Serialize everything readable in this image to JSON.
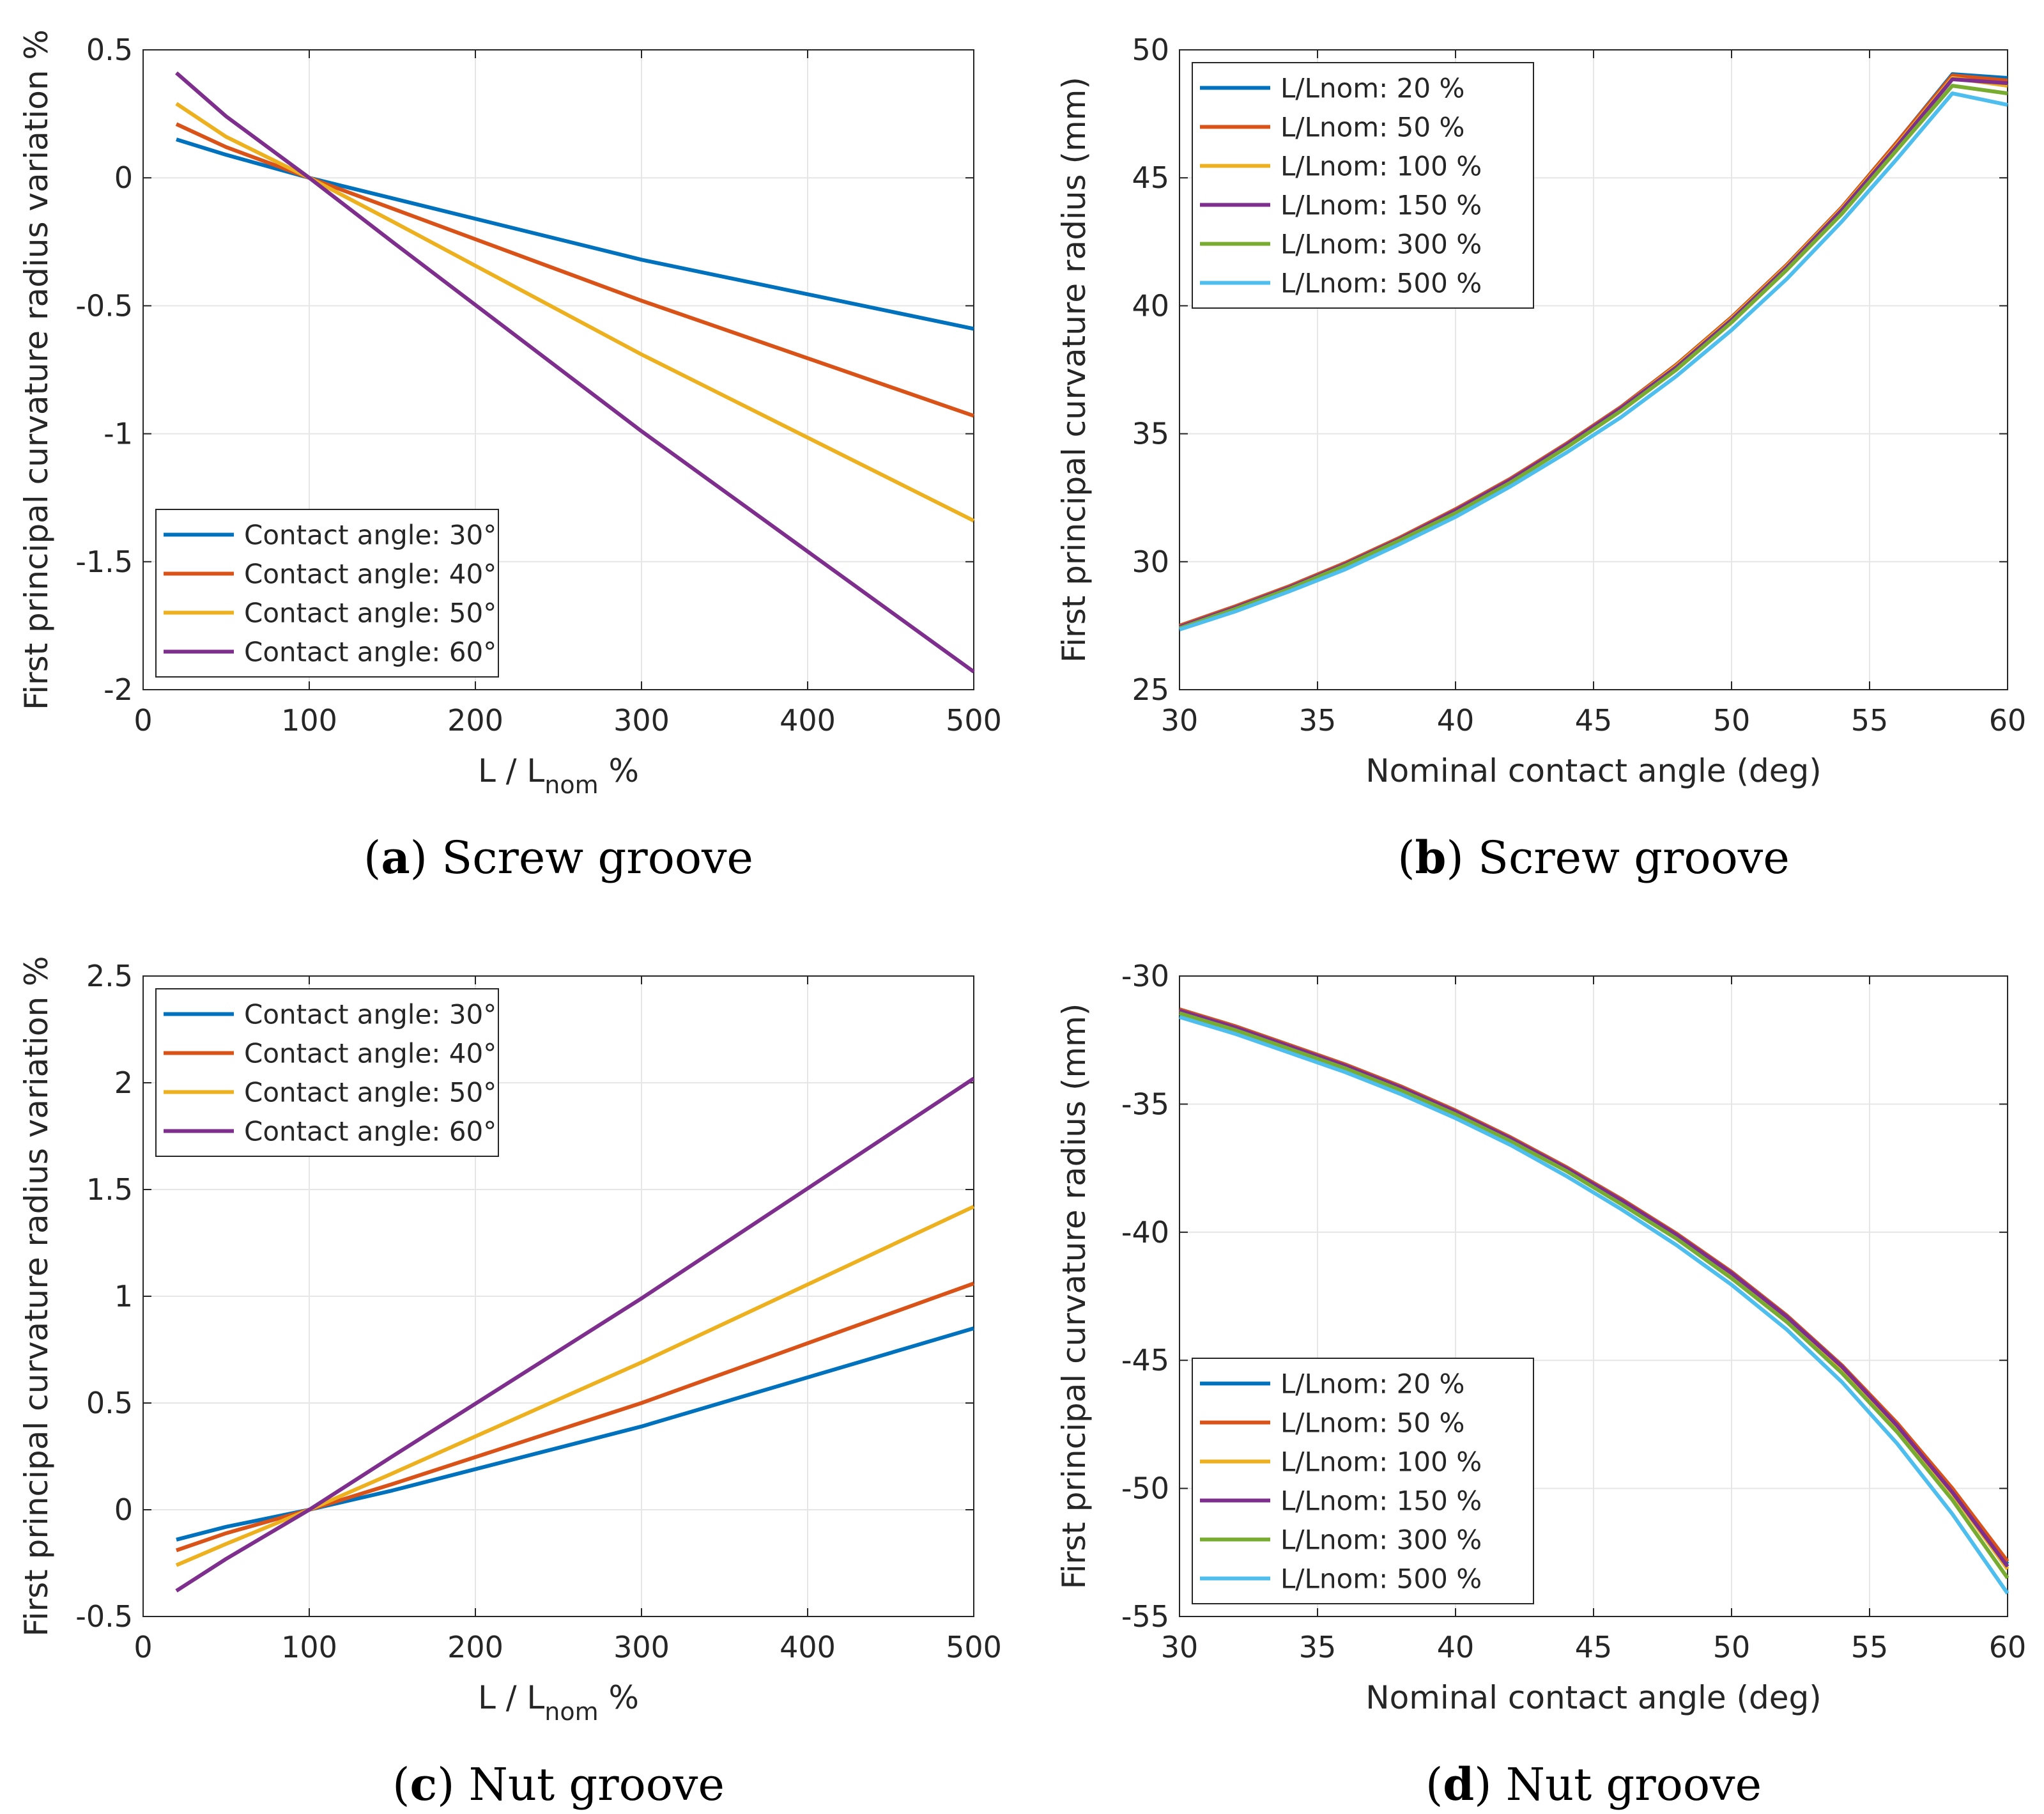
{
  "chart_data": [
    {
      "id": "a",
      "type": "line",
      "caption": {
        "letter": "a",
        "text": "Screw groove"
      },
      "xlabel": "L / L",
      "xlabel_sub": "nom",
      "xlabel_suffix": " %",
      "ylabel": "First principal curvature radius variation %",
      "xlim": [
        0,
        500
      ],
      "ylim": [
        -2,
        0.5
      ],
      "xticks": [
        0,
        100,
        200,
        300,
        400,
        500
      ],
      "xtick_labels": [
        "0",
        "100",
        "200",
        "300",
        "400",
        "500"
      ],
      "yticks": [
        -2,
        -1.5,
        -1,
        -0.5,
        0,
        0.5
      ],
      "ytick_labels": [
        "-2",
        "-1.5",
        "-1",
        "-0.5",
        "0",
        "0.5"
      ],
      "grid": true,
      "legend_position": "bottom-left",
      "x": [
        20,
        50,
        100,
        150,
        300,
        500
      ],
      "series": [
        {
          "name": "Contact angle: 30°",
          "color": "#0072BD",
          "values": [
            0.15,
            0.09,
            0.0,
            -0.08,
            -0.32,
            -0.59
          ]
        },
        {
          "name": "Contact angle: 40°",
          "color": "#D95319",
          "values": [
            0.21,
            0.12,
            0.0,
            -0.12,
            -0.48,
            -0.93
          ]
        },
        {
          "name": "Contact angle: 50°",
          "color": "#EDB120",
          "values": [
            0.29,
            0.16,
            0.0,
            -0.17,
            -0.69,
            -1.34
          ]
        },
        {
          "name": "Contact angle: 60°",
          "color": "#7E2F8E",
          "values": [
            0.41,
            0.24,
            0.0,
            -0.25,
            -0.99,
            -1.93
          ]
        }
      ]
    },
    {
      "id": "b",
      "type": "line",
      "caption": {
        "letter": "b",
        "text": "Screw groove"
      },
      "xlabel": "Nominal contact angle (deg)",
      "ylabel": "First principal curvature radius (mm)",
      "xlim": [
        30,
        60
      ],
      "ylim": [
        25,
        50
      ],
      "xticks": [
        30,
        35,
        40,
        45,
        50,
        55,
        60
      ],
      "xtick_labels": [
        "30",
        "35",
        "40",
        "45",
        "50",
        "55",
        "60"
      ],
      "yticks": [
        25,
        30,
        35,
        40,
        45,
        50
      ],
      "ytick_labels": [
        "25",
        "30",
        "35",
        "40",
        "45",
        "50"
      ],
      "grid": true,
      "legend_position": "top-left",
      "x": [
        30,
        32,
        34,
        36,
        38,
        40,
        42,
        44,
        46,
        48,
        50,
        52,
        54,
        56,
        58,
        60
      ],
      "series": [
        {
          "name": "L/Lnom:   20 %",
          "color": "#0072BD",
          "values": [
            27.5,
            28.25,
            29.05,
            29.95,
            30.95,
            32.05,
            33.25,
            34.6,
            36.05,
            37.7,
            39.55,
            41.6,
            43.85,
            46.4,
            49.05,
            48.9
          ]
        },
        {
          "name": "L/Lnom:   50 %",
          "color": "#D95319",
          "values": [
            27.5,
            28.25,
            29.05,
            29.95,
            30.95,
            32.05,
            33.25,
            34.6,
            36.05,
            37.7,
            39.55,
            41.6,
            43.85,
            46.4,
            49.0,
            48.8
          ]
        },
        {
          "name": "L/Lnom: 100 %",
          "color": "#EDB120",
          "values": [
            27.45,
            28.2,
            29.0,
            29.9,
            30.9,
            32.0,
            33.2,
            34.55,
            36.0,
            37.65,
            39.5,
            41.55,
            43.8,
            46.3,
            48.9,
            48.6
          ]
        },
        {
          "name": "L/Lnom: 150 %",
          "color": "#7E2F8E",
          "values": [
            27.45,
            28.2,
            29.0,
            29.9,
            30.9,
            32.0,
            33.2,
            34.55,
            36.0,
            37.6,
            39.45,
            41.5,
            43.75,
            46.25,
            48.85,
            48.7
          ]
        },
        {
          "name": "L/Lnom: 300 %",
          "color": "#77AC30",
          "values": [
            27.4,
            28.15,
            28.95,
            29.85,
            30.85,
            31.9,
            33.1,
            34.45,
            35.9,
            37.5,
            39.35,
            41.4,
            43.6,
            46.1,
            48.6,
            48.3
          ]
        },
        {
          "name": "L/Lnom: 500 %",
          "color": "#4DBEEE",
          "values": [
            27.35,
            28.05,
            28.85,
            29.7,
            30.7,
            31.75,
            32.95,
            34.25,
            35.65,
            37.25,
            39.05,
            41.05,
            43.3,
            45.75,
            48.3,
            47.85
          ]
        }
      ]
    },
    {
      "id": "c",
      "type": "line",
      "caption": {
        "letter": "c",
        "text": "Nut groove"
      },
      "xlabel": "L / L",
      "xlabel_sub": "nom",
      "xlabel_suffix": " %",
      "ylabel": "First principal curvature radius variation %",
      "xlim": [
        0,
        500
      ],
      "ylim": [
        -0.5,
        2.5
      ],
      "xticks": [
        0,
        100,
        200,
        300,
        400,
        500
      ],
      "xtick_labels": [
        "0",
        "100",
        "200",
        "300",
        "400",
        "500"
      ],
      "yticks": [
        -0.5,
        0,
        0.5,
        1,
        1.5,
        2,
        2.5
      ],
      "ytick_labels": [
        "-0.5",
        "0",
        "0.5",
        "1",
        "1.5",
        "2",
        "2.5"
      ],
      "grid": true,
      "legend_position": "top-left",
      "x": [
        20,
        50,
        100,
        150,
        300,
        500
      ],
      "series": [
        {
          "name": "Contact angle: 30°",
          "color": "#0072BD",
          "values": [
            -0.14,
            -0.08,
            0.0,
            0.09,
            0.39,
            0.85
          ]
        },
        {
          "name": "Contact angle: 40°",
          "color": "#D95319",
          "values": [
            -0.19,
            -0.11,
            0.0,
            0.12,
            0.5,
            1.06
          ]
        },
        {
          "name": "Contact angle: 50°",
          "color": "#EDB120",
          "values": [
            -0.26,
            -0.16,
            0.0,
            0.17,
            0.69,
            1.42
          ]
        },
        {
          "name": "Contact angle: 60°",
          "color": "#7E2F8E",
          "values": [
            -0.38,
            -0.23,
            0.0,
            0.25,
            0.99,
            2.02
          ]
        }
      ]
    },
    {
      "id": "d",
      "type": "line",
      "caption": {
        "letter": "d",
        "text": "Nut groove"
      },
      "xlabel": "Nominal contact angle (deg)",
      "ylabel": "First principal curvature radius (mm)",
      "xlim": [
        30,
        60
      ],
      "ylim": [
        -55,
        -30
      ],
      "xticks": [
        30,
        35,
        40,
        45,
        50,
        55,
        60
      ],
      "xtick_labels": [
        "30",
        "35",
        "40",
        "45",
        "50",
        "55",
        "60"
      ],
      "yticks": [
        -55,
        -50,
        -45,
        -40,
        -35,
        -30
      ],
      "ytick_labels": [
        "-55",
        "-50",
        "-45",
        "-40",
        "-35",
        "-30"
      ],
      "grid": true,
      "legend_position": "bottom-left",
      "x": [
        30,
        32,
        34,
        36,
        38,
        40,
        42,
        44,
        46,
        48,
        50,
        52,
        54,
        56,
        58,
        60
      ],
      "series": [
        {
          "name": "L/Lnom:   20 %",
          "color": "#0072BD",
          "values": [
            -31.3,
            -31.95,
            -32.7,
            -33.45,
            -34.3,
            -35.25,
            -36.3,
            -37.45,
            -38.7,
            -40.05,
            -41.55,
            -43.25,
            -45.2,
            -47.5,
            -50.05,
            -52.95
          ]
        },
        {
          "name": "L/Lnom:   50 %",
          "color": "#D95319",
          "values": [
            -31.3,
            -31.95,
            -32.7,
            -33.45,
            -34.3,
            -35.25,
            -36.3,
            -37.45,
            -38.7,
            -40.05,
            -41.55,
            -43.25,
            -45.2,
            -47.45,
            -50.0,
            -52.85
          ]
        },
        {
          "name": "L/Lnom: 100 %",
          "color": "#EDB120",
          "values": [
            -31.35,
            -32.0,
            -32.75,
            -33.5,
            -34.35,
            -35.3,
            -36.35,
            -37.5,
            -38.75,
            -40.15,
            -41.65,
            -43.35,
            -45.3,
            -47.6,
            -50.2,
            -53.15
          ]
        },
        {
          "name": "L/Lnom: 150 %",
          "color": "#7E2F8E",
          "values": [
            -31.35,
            -32.0,
            -32.75,
            -33.5,
            -34.35,
            -35.3,
            -36.35,
            -37.5,
            -38.75,
            -40.1,
            -41.6,
            -43.3,
            -45.25,
            -47.55,
            -50.15,
            -53.05
          ]
        },
        {
          "name": "L/Lnom: 300 %",
          "color": "#77AC30",
          "values": [
            -31.45,
            -32.1,
            -32.85,
            -33.6,
            -34.45,
            -35.4,
            -36.45,
            -37.6,
            -38.9,
            -40.25,
            -41.8,
            -43.5,
            -45.5,
            -47.8,
            -50.45,
            -53.5
          ]
        },
        {
          "name": "L/Lnom: 500 %",
          "color": "#4DBEEE",
          "values": [
            -31.6,
            -32.25,
            -33.0,
            -33.75,
            -34.6,
            -35.55,
            -36.6,
            -37.8,
            -39.1,
            -40.5,
            -42.05,
            -43.8,
            -45.85,
            -48.25,
            -51.0,
            -54.1
          ]
        }
      ]
    }
  ]
}
